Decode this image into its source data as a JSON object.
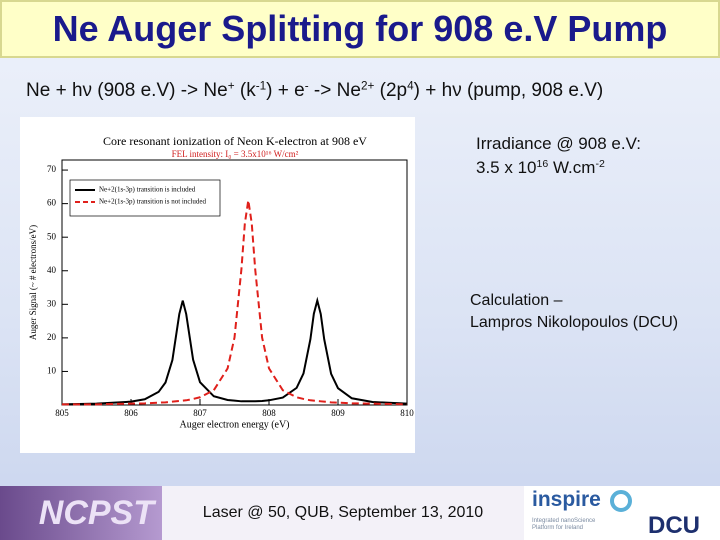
{
  "title": "Ne Auger Splitting for 908 e.V Pump",
  "equation": [
    {
      "text": "Ne + hν (908 e.V) -> Ne"
    },
    {
      "sup": "+"
    },
    {
      "text": " (k"
    },
    {
      "sup": "-1"
    },
    {
      "text": ") + e"
    },
    {
      "sup": "-"
    },
    {
      "text": " -> Ne"
    },
    {
      "sup": "2+"
    },
    {
      "text": " (2p"
    },
    {
      "sup": "4"
    },
    {
      "text": ") + hν (pump, 908 e.V)"
    }
  ],
  "irradiance": {
    "heading": "Irradiance @ 908 e.V:",
    "parts": [
      {
        "text": "3.5 x 10"
      },
      {
        "sup": "16"
      },
      {
        "text": " W.cm"
      },
      {
        "sup": "-2"
      }
    ]
  },
  "calculation": {
    "line1": "Calculation –",
    "line2": "Lampros Nikolopoulos (DCU)"
  },
  "footer": {
    "left_logo": "NCPST",
    "center": "Laser @ 50, QUB, September 13, 2010",
    "inspire_logo": "inspire",
    "inspire_tagline": "Integrated nanoScience Platform for Ireland",
    "dcu_logo": "DCU"
  },
  "chart_data": {
    "type": "line",
    "title": "Core resonant ionization of Neon K-electron at 908 eV",
    "subtitle": "FEL intensity: I₀ = 3.5x10¹⁶ W/cm²",
    "xlabel": "Auger electron energy (eV)",
    "ylabel": "Auger Signal (~ # electrons/eV)",
    "x": [
      805,
      805.5,
      806,
      806.2,
      806.4,
      806.5,
      806.6,
      806.7,
      806.75,
      806.8,
      806.9,
      807,
      807.2,
      807.4,
      807.5,
      807.6,
      807.65,
      807.7,
      807.75,
      807.8,
      807.9,
      808,
      808.2,
      808.4,
      808.5,
      808.6,
      808.65,
      808.7,
      808.75,
      808.8,
      808.9,
      809,
      809.2,
      809.5,
      810
    ],
    "series": [
      {
        "name": "Ne+2(1s-3p) transition is included",
        "color": "#000000",
        "style": "solid",
        "values": [
          0.2,
          0.4,
          1.0,
          1.7,
          3.9,
          6.7,
          13.4,
          27.1,
          31.1,
          27.1,
          13.5,
          6.8,
          2.6,
          1.5,
          1.3,
          1.1,
          1.1,
          1.1,
          1.1,
          1.1,
          1.2,
          1.4,
          2.2,
          5.1,
          9.4,
          19.6,
          27.2,
          31.1,
          27.1,
          19.6,
          9.3,
          5.0,
          2.0,
          0.9,
          0.4
        ]
      },
      {
        "name": "Ne+2(1s-3p) transition is not included",
        "color": "#e0201b",
        "style": "dashed",
        "values": [
          0.2,
          0.2,
          0.4,
          0.5,
          0.7,
          0.8,
          1.0,
          1.2,
          1.3,
          1.4,
          1.8,
          2.3,
          4.4,
          10.9,
          20.1,
          40.4,
          54.1,
          61,
          54.1,
          40.4,
          20.1,
          10.9,
          4.4,
          2.3,
          1.8,
          1.4,
          1.3,
          1.2,
          1.1,
          1.0,
          0.8,
          0.7,
          0.5,
          0.4,
          0.2
        ]
      }
    ],
    "xlim": [
      805,
      810
    ],
    "xticks": [
      805,
      806,
      807,
      808,
      809,
      810
    ],
    "ylim": [
      0,
      73
    ],
    "yticks": [
      10,
      20,
      30,
      40,
      50,
      60,
      70
    ],
    "legend": "upper left",
    "grid": false
  }
}
